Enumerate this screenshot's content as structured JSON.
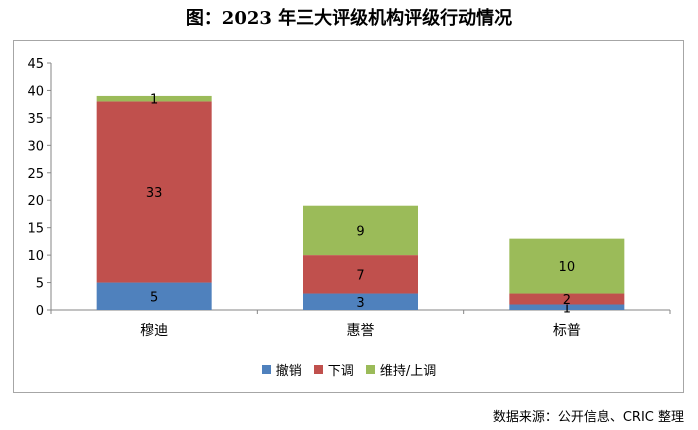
{
  "title": "图：2023 年三大评级机构评级行动情况",
  "source": "数据来源：公开信息、CRIC 整理",
  "chart_data": {
    "type": "bar",
    "stacked": true,
    "categories": [
      "穆迪",
      "惠誉",
      "标普"
    ],
    "series": [
      {
        "name": "撤销",
        "color": "#4f81bd",
        "values": [
          5,
          3,
          1
        ]
      },
      {
        "name": "下调",
        "color": "#c0504d",
        "values": [
          33,
          7,
          2
        ]
      },
      {
        "name": "维持/上调",
        "color": "#9bbb59",
        "values": [
          1,
          9,
          10
        ]
      }
    ],
    "ylim": [
      0,
      45
    ],
    "yticks": [
      0,
      5,
      10,
      15,
      20,
      25,
      30,
      35,
      40,
      45
    ],
    "grid": false,
    "legend": "bottom"
  }
}
